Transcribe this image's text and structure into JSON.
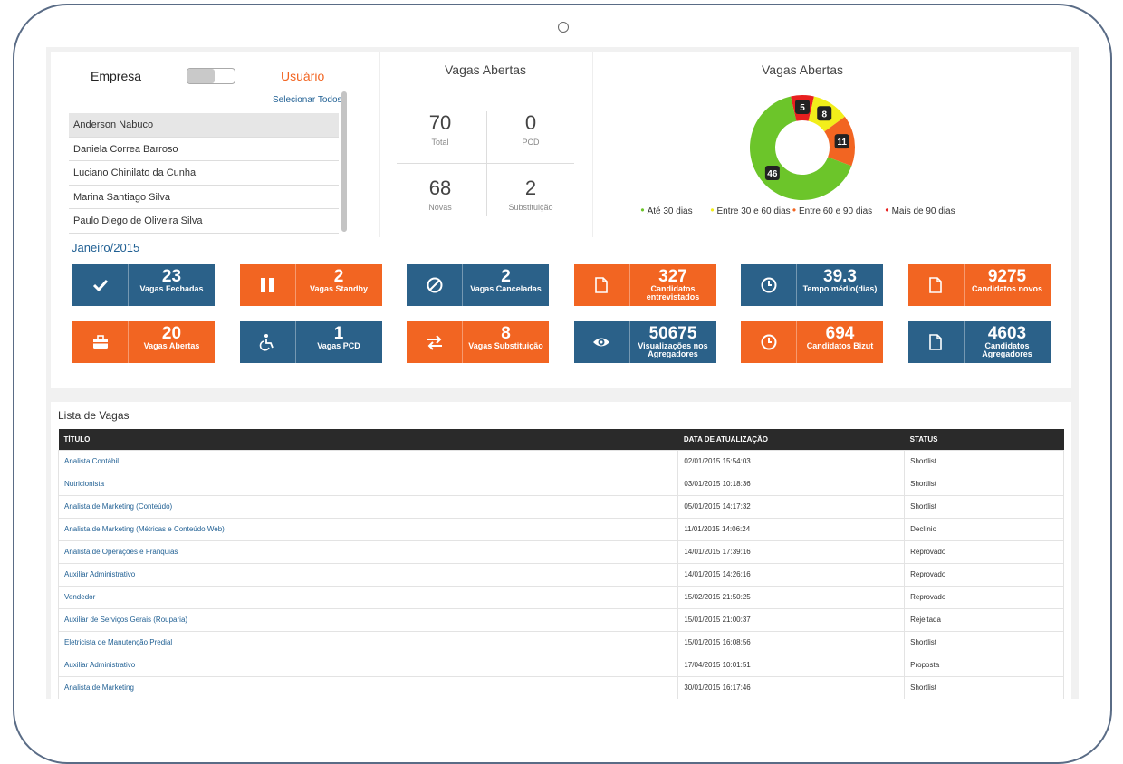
{
  "left_panel": {
    "toggle_left": "Empresa",
    "toggle_right": "Usuário",
    "select_all": "Selecionar Todos",
    "users": [
      "Anderson Nabuco",
      "Daniela Correa Barroso",
      "Luciano Chinilato da Cunha",
      "Marina Santiago Silva",
      "Paulo Diego de Oliveira Silva"
    ],
    "selected_index": 0
  },
  "stats": {
    "title": "Vagas Abertas",
    "cells": [
      {
        "num": "70",
        "label": "Total"
      },
      {
        "num": "0",
        "label": "PCD"
      },
      {
        "num": "68",
        "label": "Novas"
      },
      {
        "num": "2",
        "label": "Substituição"
      }
    ]
  },
  "chart_data": {
    "type": "pie",
    "title": "Vagas Abertas",
    "categories": [
      "Até 30 dias",
      "Entre 30 e 60 dias",
      "Entre 60 e 90 dias",
      "Mais de 90 dias"
    ],
    "values": [
      46,
      8,
      11,
      5
    ],
    "colors": [
      "#6cc52a",
      "#f2ee1a",
      "#f26522",
      "#e8201f"
    ],
    "legend_position": "bottom"
  },
  "period": "Janeiro/2015",
  "tiles": [
    {
      "num": "23",
      "label": "Vagas Fechadas",
      "color": "blue",
      "icon": "check-icon"
    },
    {
      "num": "2",
      "label": "Vagas Standby",
      "color": "orange",
      "icon": "pause-icon"
    },
    {
      "num": "2",
      "label": "Vagas Canceladas",
      "color": "blue",
      "icon": "ban-icon"
    },
    {
      "num": "327",
      "label": "Candidatos entrevistados",
      "color": "orange",
      "icon": "file-icon"
    },
    {
      "num": "39.3",
      "label": "Tempo médio(dias)",
      "color": "blue",
      "icon": "clock-icon"
    },
    {
      "num": "9275",
      "label": "Candidatos novos",
      "color": "orange",
      "icon": "file-icon"
    },
    {
      "num": "20",
      "label": "Vagas Abertas",
      "color": "orange",
      "icon": "briefcase-icon"
    },
    {
      "num": "1",
      "label": "Vagas PCD",
      "color": "blue",
      "icon": "wheelchair-icon"
    },
    {
      "num": "8",
      "label": "Vagas Substituição",
      "color": "orange",
      "icon": "swap-icon"
    },
    {
      "num": "50675",
      "label": "Visualizações nos Agregadores",
      "color": "blue",
      "icon": "eye-icon"
    },
    {
      "num": "694",
      "label": "Candidatos Bizut",
      "color": "orange",
      "icon": "clock-icon"
    },
    {
      "num": "4603",
      "label": "Candidatos Agregadores",
      "color": "blue",
      "icon": "file-icon"
    }
  ],
  "list": {
    "title": "Lista de Vagas",
    "columns": [
      "TÍTULO",
      "DATA DE ATUALIZAÇÃO",
      "STATUS"
    ],
    "rows": [
      [
        "Analista Contábil",
        "02/01/2015 15:54:03",
        "Shortlist"
      ],
      [
        "Nutricionista",
        "03/01/2015 10:18:36",
        "Shortlist"
      ],
      [
        "Analista de Marketing (Conteúdo)",
        "05/01/2015 14:17:32",
        "Shortlist"
      ],
      [
        "Analista de Marketing (Métricas e Conteúdo Web)",
        "11/01/2015 14:06:24",
        "Declínio"
      ],
      [
        "Analista de Operações e Franquias",
        "14/01/2015 17:39:16",
        "Reprovado"
      ],
      [
        "Auxiliar Administrativo",
        "14/01/2015 14:26:16",
        "Reprovado"
      ],
      [
        "Vendedor",
        "15/02/2015 21:50:25",
        "Reprovado"
      ],
      [
        "Auxiliar de Serviços Gerais (Rouparia)",
        "15/01/2015 21:00:37",
        "Rejeitada"
      ],
      [
        "Eletricista de Manutenção Predial",
        "15/01/2015 16:08:56",
        "Shortlist"
      ],
      [
        "Auxiliar Administrativo",
        "17/04/2015 10:01:51",
        "Proposta"
      ],
      [
        "Analista de Marketing",
        "30/01/2015 16:17:46",
        "Shortlist"
      ]
    ]
  }
}
